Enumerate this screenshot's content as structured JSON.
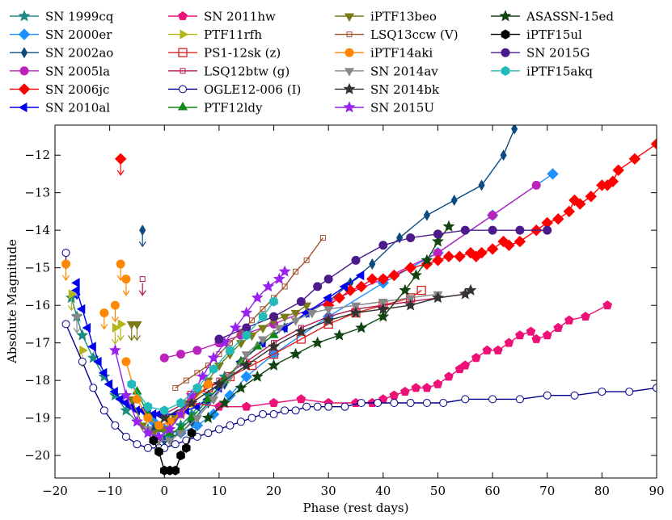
{
  "chart_data": {
    "type": "line",
    "title": "",
    "xlabel": "Phase (rest days)",
    "ylabel": "Absolute Magnitude",
    "xlim": [
      -20,
      90
    ],
    "ylim": [
      -11.2,
      -20.6
    ],
    "y_inverted": true,
    "xticks": [
      -20,
      -10,
      0,
      10,
      20,
      30,
      40,
      50,
      60,
      70,
      80,
      90
    ],
    "yticks": [
      -12,
      -13,
      -14,
      -15,
      -16,
      -17,
      -18,
      -19,
      -20
    ],
    "legend_position": "top (above plot, 4 columns)",
    "series": [
      {
        "name": "SN 1999cq",
        "color": "#1f8a80",
        "marker": "star",
        "x": [
          -17,
          -16,
          -15,
          -13,
          -11,
          -9,
          -7,
          -5,
          -3,
          -1,
          1,
          3,
          5,
          8,
          11
        ],
        "y": [
          -15.8,
          -16.3,
          -16.8,
          -17.4,
          -17.9,
          -18.4,
          -18.8,
          -19.1,
          -19.3,
          -19.5,
          -19.5,
          -19.2,
          -18.9,
          -18.4,
          -17.9
        ]
      },
      {
        "name": "SN 2000er",
        "color": "#1e90ff",
        "marker": "diamond",
        "x": [
          -2,
          0,
          3,
          6,
          9,
          12,
          15,
          20,
          30,
          40,
          50,
          60,
          71
        ],
        "y": [
          -19.1,
          -19.3,
          -19.4,
          -19.2,
          -18.9,
          -18.4,
          -17.9,
          -17.3,
          -16.3,
          -15.4,
          -14.6,
          -13.6,
          -12.5
        ]
      },
      {
        "name": "SN 2002ao",
        "color": "#0d4a80",
        "marker": "thin-diamond",
        "x": [
          -2,
          0,
          3,
          5,
          8,
          11,
          14,
          18,
          22,
          26,
          30,
          34,
          38,
          43,
          48,
          53,
          58,
          62,
          64
        ],
        "y": [
          -19.3,
          -19.6,
          -19.4,
          -19.1,
          -18.6,
          -18.1,
          -17.5,
          -17.0,
          -16.6,
          -16.2,
          -15.9,
          -15.4,
          -14.9,
          -14.2,
          -13.6,
          -13.2,
          -12.8,
          -12.0,
          -11.3
        ],
        "upper_limits": [
          {
            "x": -4,
            "y": -14.0
          }
        ]
      },
      {
        "name": "SN 2005la",
        "color": "#bb22bb",
        "marker": "circle",
        "x": [
          0,
          3,
          6,
          10,
          14,
          20,
          30,
          40,
          50,
          60,
          68
        ],
        "y": [
          -17.4,
          -17.3,
          -17.2,
          -17.0,
          -16.8,
          -16.5,
          -15.9,
          -15.3,
          -14.6,
          -13.6,
          -12.8
        ]
      },
      {
        "name": "SN 2006jc",
        "color": "#ff0000",
        "marker": "diamond",
        "x": [
          30,
          32,
          34,
          36,
          38,
          40,
          42,
          45,
          48,
          50,
          52,
          54,
          56,
          57,
          58,
          60,
          62,
          63,
          65,
          68,
          70,
          72,
          74,
          75,
          76,
          78,
          80,
          81,
          82,
          83,
          86,
          90
        ],
        "y": [
          -16.0,
          -15.8,
          -15.6,
          -15.5,
          -15.3,
          -15.3,
          -15.2,
          -15.0,
          -14.9,
          -14.8,
          -14.7,
          -14.7,
          -14.6,
          -14.7,
          -14.6,
          -14.5,
          -14.3,
          -14.4,
          -14.3,
          -14.0,
          -13.8,
          -13.7,
          -13.5,
          -13.2,
          -13.3,
          -13.1,
          -12.8,
          -12.8,
          -12.7,
          -12.4,
          -12.1,
          -11.7
        ],
        "upper_limits": [
          {
            "x": -8,
            "y": -12.1
          }
        ]
      },
      {
        "name": "SN 2010al",
        "color": "#0000ee",
        "marker": "triangle-left",
        "x": [
          -16,
          -15,
          -14,
          -13,
          -12,
          -11,
          -10,
          -9,
          -8,
          -7,
          -6,
          -5,
          -4,
          -3,
          -2,
          -1,
          0,
          2,
          4,
          6,
          8,
          10,
          14,
          18,
          22,
          26,
          30,
          33,
          36
        ],
        "y": [
          -15.6,
          -16.1,
          -16.6,
          -17.1,
          -17.5,
          -17.8,
          -18.1,
          -18.3,
          -18.5,
          -18.6,
          -18.7,
          -18.8,
          -18.8,
          -18.9,
          -18.9,
          -18.9,
          -18.9,
          -18.9,
          -18.8,
          -18.7,
          -18.5,
          -18.2,
          -17.5,
          -17.0,
          -16.6,
          -16.2,
          -15.8,
          -15.5,
          -15.2
        ],
        "upper_limits": [
          {
            "x": -16,
            "y": -15.4
          }
        ]
      },
      {
        "name": "SN 2011hw",
        "color": "#ee1177",
        "marker": "pentagon",
        "x": [
          5,
          10,
          15,
          20,
          25,
          30,
          35,
          38,
          40,
          42,
          44,
          46,
          48,
          50,
          52,
          54,
          55,
          57,
          59,
          61,
          63,
          65,
          67,
          68,
          70,
          72,
          74,
          77,
          81
        ],
        "y": [
          -18.6,
          -18.7,
          -18.7,
          -18.6,
          -18.5,
          -18.6,
          -18.6,
          -18.6,
          -18.5,
          -18.4,
          -18.3,
          -18.2,
          -18.2,
          -18.1,
          -17.9,
          -17.7,
          -17.6,
          -17.4,
          -17.2,
          -17.2,
          -17.0,
          -16.8,
          -16.7,
          -16.9,
          -16.8,
          -16.6,
          -16.4,
          -16.3,
          -16.0
        ]
      },
      {
        "name": "PTF11rfh",
        "color": "#b5b518",
        "marker": "triangle-right",
        "x": [],
        "y": [],
        "upper_limits": [
          {
            "x": -17,
            "y": -15.7
          },
          {
            "x": -15,
            "y": -17.2
          },
          {
            "x": -9,
            "y": -16.6
          },
          {
            "x": -8,
            "y": -16.5
          }
        ]
      },
      {
        "name": "PS1-12sk (z)",
        "color": "#dd2222",
        "marker": "square-open",
        "x": [
          5,
          8,
          12,
          16,
          20,
          25,
          30,
          35,
          40,
          45,
          47
        ],
        "y": [
          -18.4,
          -18.2,
          -17.9,
          -17.6,
          -17.3,
          -16.9,
          -16.5,
          -16.2,
          -16.0,
          -15.8,
          -15.6
        ]
      },
      {
        "name": "LSQ12btw (g)",
        "color": "#b01850",
        "marker": "open-square-small",
        "x": [
          0,
          5,
          10,
          15,
          20,
          25,
          30,
          35,
          40,
          45,
          50,
          55
        ],
        "y": [
          -18.9,
          -18.5,
          -18.0,
          -17.5,
          -17.0,
          -16.6,
          -16.3,
          -16.1,
          -16.0,
          -15.9,
          -15.8,
          -15.7
        ],
        "upper_limits": [
          {
            "x": -4,
            "y": -15.3
          }
        ]
      },
      {
        "name": "OGLE12-006 (I)",
        "color": "#00008b",
        "marker": "circle-open",
        "x": [
          -18,
          -15,
          -13,
          -11,
          -9,
          -7,
          -5,
          -3,
          -1,
          0,
          2,
          4,
          6,
          8,
          10,
          12,
          14,
          16,
          18,
          20,
          22,
          24,
          26,
          28,
          30,
          33,
          36,
          39,
          42,
          45,
          48,
          51,
          55,
          60,
          65,
          70,
          75,
          80,
          85,
          90
        ],
        "y": [
          -16.5,
          -17.5,
          -18.2,
          -18.8,
          -19.2,
          -19.5,
          -19.7,
          -19.8,
          -19.8,
          -19.8,
          -19.7,
          -19.6,
          -19.5,
          -19.4,
          -19.3,
          -19.2,
          -19.1,
          -19.0,
          -18.9,
          -18.9,
          -18.8,
          -18.8,
          -18.7,
          -18.7,
          -18.7,
          -18.7,
          -18.6,
          -18.6,
          -18.6,
          -18.6,
          -18.6,
          -18.6,
          -18.5,
          -18.5,
          -18.5,
          -18.4,
          -18.4,
          -18.3,
          -18.3,
          -18.2
        ],
        "upper_limits": [
          {
            "x": -18,
            "y": -14.6
          }
        ]
      },
      {
        "name": "PTF12ldy",
        "color": "#118811",
        "marker": "triangle-up",
        "x": [
          -5,
          -3,
          -1,
          1,
          3,
          5,
          8,
          11,
          14,
          17,
          20
        ],
        "y": [
          -18.3,
          -18.9,
          -19.3,
          -19.4,
          -19.3,
          -19.0,
          -18.5,
          -18.0,
          -17.5,
          -17.1,
          -16.8
        ]
      },
      {
        "name": "iPTF13beo",
        "color": "#7a7a1a",
        "marker": "triangle-down",
        "x": [
          -6,
          -4,
          -2,
          0,
          2,
          4,
          6,
          8,
          10,
          12,
          14,
          16,
          18,
          20,
          22,
          24,
          26
        ],
        "y": [
          -18.5,
          -19.2,
          -19.4,
          -19.3,
          -19.0,
          -18.6,
          -18.3,
          -18.0,
          -17.6,
          -17.3,
          -17.0,
          -16.8,
          -16.6,
          -16.4,
          -16.3,
          -16.2,
          -16.0
        ],
        "upper_limits": [
          {
            "x": -6,
            "y": -16.5
          },
          {
            "x": -5,
            "y": -16.5
          }
        ]
      },
      {
        "name": "LSQ13ccw (V)",
        "color": "#a0522d",
        "marker": "open-square-small",
        "x": [
          2,
          4,
          6,
          8,
          10,
          12,
          14,
          16,
          18,
          20,
          22,
          24,
          26,
          29
        ],
        "y": [
          -18.2,
          -18.0,
          -17.8,
          -17.6,
          -17.3,
          -17.0,
          -16.7,
          -16.4,
          -16.1,
          -15.8,
          -15.5,
          -15.1,
          -14.8,
          -14.2
        ]
      },
      {
        "name": "iPTF14aki",
        "color": "#ff8800",
        "marker": "circle",
        "x": [
          -7,
          -5,
          -3,
          -1,
          1,
          3,
          5,
          8
        ],
        "y": [
          -17.5,
          -18.5,
          -19.0,
          -19.2,
          -19.1,
          -18.9,
          -18.6,
          -18.1
        ],
        "upper_limits": [
          {
            "x": -18,
            "y": -14.9
          },
          {
            "x": -11,
            "y": -16.2
          },
          {
            "x": -9,
            "y": -16.0
          },
          {
            "x": -8,
            "y": -14.9
          },
          {
            "x": -7,
            "y": -15.3
          }
        ]
      },
      {
        "name": "SN 2014av",
        "color": "#888888",
        "marker": "triangle-down",
        "x": [
          -3,
          -1,
          1,
          3,
          6,
          9,
          12,
          15,
          18,
          21,
          24,
          27,
          30,
          35,
          40,
          45,
          50
        ],
        "y": [
          -19.3,
          -19.6,
          -19.6,
          -19.4,
          -19.0,
          -18.5,
          -17.9,
          -17.3,
          -16.9,
          -16.6,
          -16.4,
          -16.2,
          -16.1,
          -16.0,
          -15.9,
          -15.8,
          -15.7
        ],
        "upper_limits": [
          {
            "x": -16,
            "y": -16.3
          }
        ]
      },
      {
        "name": "SN 2014bk",
        "color": "#333333",
        "marker": "star",
        "x": [
          0,
          5,
          10,
          15,
          20,
          25,
          30,
          35,
          40,
          45,
          50,
          55,
          56
        ],
        "y": [
          -19.0,
          -18.6,
          -18.1,
          -17.6,
          -17.1,
          -16.7,
          -16.4,
          -16.2,
          -16.1,
          -16.0,
          -15.8,
          -15.7,
          -15.6
        ]
      },
      {
        "name": "SN 2015U",
        "color": "#9922ee",
        "marker": "star",
        "x": [
          -9,
          -7,
          -5,
          -3,
          -1,
          1,
          3,
          5,
          7,
          9,
          11,
          13,
          15,
          17,
          19,
          21,
          22
        ],
        "y": [
          -17.2,
          -18.4,
          -19.1,
          -19.4,
          -19.5,
          -19.3,
          -18.9,
          -18.4,
          -17.9,
          -17.4,
          -17.0,
          -16.6,
          -16.2,
          -15.8,
          -15.5,
          -15.3,
          -15.1
        ]
      },
      {
        "name": "ASASSN-15ed",
        "color": "#114411",
        "marker": "star",
        "x": [
          8,
          11,
          14,
          17,
          20,
          24,
          28,
          32,
          36,
          40,
          44,
          46,
          48,
          50,
          52
        ],
        "y": [
          -19.0,
          -18.6,
          -18.2,
          -17.9,
          -17.6,
          -17.3,
          -17.0,
          -16.8,
          -16.6,
          -16.3,
          -15.6,
          -15.2,
          -14.8,
          -14.3,
          -13.9
        ]
      },
      {
        "name": "iPTF15ul",
        "color": "#000000",
        "marker": "hexagon",
        "x": [
          -2,
          -1,
          0,
          1,
          2,
          3,
          4,
          5
        ],
        "y": [
          -19.6,
          -19.9,
          -20.4,
          -20.4,
          -20.4,
          -20.0,
          -19.8,
          -19.4
        ]
      },
      {
        "name": "SN 2015G",
        "color": "#4b1a8b",
        "marker": "circle",
        "x": [
          10,
          15,
          20,
          25,
          28,
          30,
          35,
          40,
          45,
          50,
          55,
          60,
          65,
          70
        ],
        "y": [
          -16.9,
          -16.6,
          -16.3,
          -15.9,
          -15.5,
          -15.3,
          -14.8,
          -14.4,
          -14.2,
          -14.1,
          -14.0,
          -14.0,
          -14.0,
          -14.0
        ]
      },
      {
        "name": "iPTF15akq",
        "color": "#22bbbb",
        "marker": "hexagon",
        "x": [
          -6,
          -3,
          0,
          3,
          6,
          9,
          12,
          15,
          18,
          20
        ],
        "y": [
          -18.1,
          -18.7,
          -18.8,
          -18.6,
          -18.2,
          -17.7,
          -17.2,
          -16.8,
          -16.3,
          -15.9
        ]
      }
    ]
  }
}
